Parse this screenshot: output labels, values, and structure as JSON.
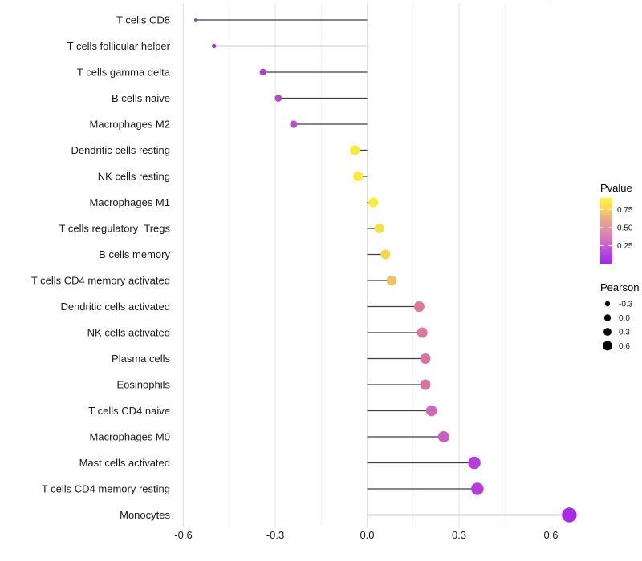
{
  "chart_data": {
    "type": "scatter",
    "subtype": "lollipop",
    "title": "",
    "xlabel": "",
    "ylabel": "",
    "xlim": [
      -0.62,
      0.72
    ],
    "grid": "vertical major and minor gridlines, no horizontal",
    "legend_position": "right",
    "x_ticks": [
      "-0.6",
      "-0.3",
      "0.0",
      "0.3",
      "0.6"
    ],
    "x_tick_values": [
      -0.6,
      -0.3,
      0.0,
      0.3,
      0.6
    ],
    "x_minor_values": [
      -0.45,
      -0.15,
      0.15,
      0.45
    ],
    "stem_color": "#3f3f3f",
    "points": [
      {
        "label": "T cells CD8",
        "pearson": -0.56,
        "color": "#9F2BD9",
        "r": 1.8
      },
      {
        "label": "T cells follicular helper",
        "pearson": -0.5,
        "color": "#A42FD6",
        "r": 2.6
      },
      {
        "label": "T cells gamma delta",
        "pearson": -0.34,
        "color": "#AE3BD1",
        "r": 4.2
      },
      {
        "label": "B cells naive",
        "pearson": -0.29,
        "color": "#B746CC",
        "r": 4.4
      },
      {
        "label": "Macrophages M2",
        "pearson": -0.24,
        "color": "#BB4EC7",
        "r": 4.6
      },
      {
        "label": "Dendritic cells resting",
        "pearson": -0.04,
        "color": "#F7EB35",
        "r": 6.0
      },
      {
        "label": "NK cells resting",
        "pearson": -0.03,
        "color": "#F8ED31",
        "r": 6.0
      },
      {
        "label": "Macrophages M1",
        "pearson": 0.02,
        "color": "#F8ED31",
        "r": 6.0
      },
      {
        "label": "T cells regulatory  Tregs",
        "pearson": 0.04,
        "color": "#F5E23E",
        "r": 6.0
      },
      {
        "label": "B cells memory",
        "pearson": 0.06,
        "color": "#F2D84C",
        "r": 6.1
      },
      {
        "label": "T cells CD4 memory activated",
        "pearson": 0.08,
        "color": "#EEC366",
        "r": 6.3
      },
      {
        "label": "Dendritic cells activated",
        "pearson": 0.17,
        "color": "#DE7A96",
        "r": 6.5
      },
      {
        "label": "NK cells activated",
        "pearson": 0.18,
        "color": "#DC76A0",
        "r": 6.5
      },
      {
        "label": "Plasma cells",
        "pearson": 0.19,
        "color": "#D973A4",
        "r": 6.5
      },
      {
        "label": "Eosinophils",
        "pearson": 0.19,
        "color": "#D973A4",
        "r": 6.5
      },
      {
        "label": "T cells CD4 naive",
        "pearson": 0.21,
        "color": "#D566B9",
        "r": 6.8
      },
      {
        "label": "Macrophages M0",
        "pearson": 0.25,
        "color": "#CB5BC7",
        "r": 7.0
      },
      {
        "label": "Mast cells activated",
        "pearson": 0.35,
        "color": "#B53BDC",
        "r": 7.7
      },
      {
        "label": "T cells CD4 memory resting",
        "pearson": 0.36,
        "color": "#B53BDC",
        "r": 7.7
      },
      {
        "label": "Monocytes",
        "pearson": 0.66,
        "color": "#A929E8",
        "r": 9.2
      }
    ],
    "legend": {
      "pvalue": {
        "title": "Pvalue",
        "ticks": [
          "0.75",
          "0.50",
          "0.25"
        ],
        "tick_values": [
          0.75,
          0.5,
          0.25
        ],
        "gradient_stops": [
          "#FDF53D",
          "#F6D45C",
          "#E8A88C",
          "#DD8FA9",
          "#D06CC6",
          "#B844E3",
          "#A428F0"
        ]
      },
      "pearson": {
        "title": "Pearson",
        "dot_color": "#000000",
        "sizes": [
          {
            "label": "-0.3",
            "r": 3.2
          },
          {
            "label": "0.0",
            "r": 4.2
          },
          {
            "label": "0.3",
            "r": 4.9
          },
          {
            "label": "0.6",
            "r": 5.9
          }
        ]
      }
    }
  }
}
